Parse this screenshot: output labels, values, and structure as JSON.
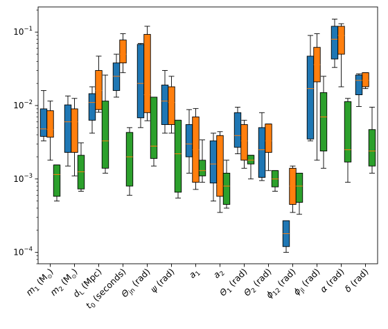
{
  "chart_data": {
    "type": "box",
    "yscale": "log",
    "ylim": [
      7e-05,
      0.22
    ],
    "yticks": [
      {
        "value": 0.0001,
        "base": "10",
        "exp": "−4"
      },
      {
        "value": 0.001,
        "base": "10",
        "exp": "−3"
      },
      {
        "value": 0.01,
        "base": "10",
        "exp": "−2"
      },
      {
        "value": 0.1,
        "base": "10",
        "exp": "−1"
      }
    ],
    "categories": [
      {
        "base": "m",
        "sub": "1",
        "unit": " (M",
        "unit_sub": "⊙",
        "unit_end": ")"
      },
      {
        "base": "m",
        "sub": "2",
        "unit": " (M",
        "unit_sub": "⊙",
        "unit_end": ")"
      },
      {
        "base": "d",
        "sub": "L",
        "unit": " (Mpc)"
      },
      {
        "base": "t",
        "sub": "0",
        "unit": " (seconds)"
      },
      {
        "base": "Θ",
        "sub": "jn",
        "unit": " (rad)"
      },
      {
        "base": "ψ",
        "unit": " (rad)"
      },
      {
        "base": "a",
        "sub": "1"
      },
      {
        "base": "a",
        "sub": "2"
      },
      {
        "base": "Θ",
        "sub": "1",
        "unit": " (rad)"
      },
      {
        "base": "Θ",
        "sub": "2",
        "unit": " (rad)"
      },
      {
        "base": "ϕ",
        "sub": "12",
        "unit": " (rad)"
      },
      {
        "base": "ϕ",
        "sub": "jl",
        "unit": " (rad)"
      },
      {
        "base": "α",
        "unit": " (rad)"
      },
      {
        "base": "δ",
        "unit": " (rad)"
      }
    ],
    "series": [
      {
        "color": "#1f77b4",
        "boxes": [
          {
            "whislo": 0.0033,
            "q1": 0.0038,
            "med": 0.0048,
            "q3": 0.009,
            "whishi": 0.016
          },
          {
            "whislo": 0.0015,
            "q1": 0.0023,
            "med": 0.006,
            "q3": 0.0102,
            "whishi": 0.0135
          },
          {
            "whislo": 0.0042,
            "q1": 0.0063,
            "med": 0.011,
            "q3": 0.0145,
            "whishi": 0.018
          },
          {
            "whislo": 0.013,
            "q1": 0.016,
            "med": 0.025,
            "q3": 0.038,
            "whishi": 0.05
          },
          {
            "whislo": 0.005,
            "q1": 0.0068,
            "med": 0.02,
            "q3": 0.068,
            "whishi": 0.07
          },
          {
            "whislo": 0.0042,
            "q1": 0.0055,
            "med": 0.0115,
            "q3": 0.019,
            "whishi": 0.03
          },
          {
            "whislo": 0.0012,
            "q1": 0.002,
            "med": 0.003,
            "q3": 0.0055,
            "whishi": 0.0088
          },
          {
            "whislo": 0.0005,
            "q1": 0.00088,
            "med": 0.0016,
            "q3": 0.0033,
            "whishi": 0.0042
          },
          {
            "whislo": 0.0022,
            "q1": 0.0027,
            "med": 0.0039,
            "q3": 0.008,
            "whishi": 0.0095
          },
          {
            "whislo": 0.00095,
            "q1": 0.00105,
            "med": 0.0025,
            "q3": 0.005,
            "whishi": 0.008
          },
          {
            "whislo": 0.0001,
            "q1": 0.00012,
            "med": 0.00018,
            "q3": 0.00027,
            "whishi": 0.00027
          },
          {
            "whislo": 0.0033,
            "q1": 0.0035,
            "med": 0.017,
            "q3": 0.047,
            "whishi": 0.09
          },
          {
            "whislo": 0.033,
            "q1": 0.043,
            "med": 0.08,
            "q3": 0.12,
            "whishi": 0.15
          },
          {
            "whislo": 0.0097,
            "q1": 0.014,
            "med": 0.022,
            "q3": 0.026,
            "whishi": 0.027
          }
        ]
      },
      {
        "color": "#ff7f0e",
        "boxes": [
          {
            "whislo": 0.0018,
            "q1": 0.0037,
            "med": 0.0047,
            "q3": 0.0085,
            "whishi": 0.0115
          },
          {
            "whislo": 0.0011,
            "q1": 0.0023,
            "med": 0.006,
            "q3": 0.009,
            "whishi": 0.0125
          },
          {
            "whislo": 0.0081,
            "q1": 0.0088,
            "med": 0.016,
            "q3": 0.03,
            "whishi": 0.047
          },
          {
            "whislo": 0.028,
            "q1": 0.038,
            "med": 0.05,
            "q3": 0.078,
            "whishi": 0.095
          },
          {
            "whislo": 0.0062,
            "q1": 0.008,
            "med": 0.014,
            "q3": 0.093,
            "whishi": 0.12
          },
          {
            "whislo": 0.0042,
            "q1": 0.0055,
            "med": 0.011,
            "q3": 0.018,
            "whishi": 0.025
          },
          {
            "whislo": 0.00072,
            "q1": 0.0009,
            "med": 0.0025,
            "q3": 0.007,
            "whishi": 0.0091
          },
          {
            "whislo": 0.00035,
            "q1": 0.00058,
            "med": 0.00085,
            "q3": 0.0039,
            "whishi": 0.0044
          },
          {
            "whislo": 0.0014,
            "q1": 0.0018,
            "med": 0.0033,
            "q3": 0.0055,
            "whishi": 0.0063
          },
          {
            "whislo": 0.0013,
            "q1": 0.0023,
            "med": 0.0033,
            "q3": 0.0056,
            "whishi": 0.0056
          },
          {
            "whislo": 0.00035,
            "q1": 0.00045,
            "med": 0.0008,
            "q3": 0.0014,
            "whishi": 0.0015
          },
          {
            "whislo": 0.0018,
            "q1": 0.021,
            "med": 0.036,
            "q3": 0.062,
            "whishi": 0.095
          },
          {
            "whislo": 0.018,
            "q1": 0.05,
            "med": 0.09,
            "q3": 0.12,
            "whishi": 0.13
          },
          {
            "whislo": 0.017,
            "q1": 0.018,
            "med": 0.022,
            "q3": 0.028,
            "whishi": 0.028
          }
        ]
      },
      {
        "color": "#2ca02c",
        "boxes": [
          {
            "whislo": 0.0005,
            "q1": 0.00058,
            "med": 0.00115,
            "q3": 0.00155,
            "whishi": 0.00155
          },
          {
            "whislo": 0.00068,
            "q1": 0.00073,
            "med": 0.00125,
            "q3": 0.0021,
            "whishi": 0.0031
          },
          {
            "whislo": 0.0012,
            "q1": 0.0014,
            "med": 0.0033,
            "q3": 0.0115,
            "whishi": 0.026
          },
          {
            "whislo": 0.0006,
            "q1": 0.0008,
            "med": 0.002,
            "q3": 0.0043,
            "whishi": 0.005
          },
          {
            "whislo": 0.0015,
            "q1": 0.0019,
            "med": 0.0028,
            "q3": 0.013,
            "whishi": 0.013
          },
          {
            "whislo": 0.00055,
            "q1": 0.00066,
            "med": 0.0022,
            "q3": 0.0063,
            "whishi": 0.0063
          },
          {
            "whislo": 0.0009,
            "q1": 0.0011,
            "med": 0.0013,
            "q3": 0.0018,
            "whishi": 0.0034
          },
          {
            "whislo": 0.0004,
            "q1": 0.00045,
            "med": 0.0008,
            "q3": 0.0012,
            "whishi": 0.0018
          },
          {
            "whislo": 0.001,
            "q1": 0.0016,
            "med": 0.0018,
            "q3": 0.0021,
            "whishi": 0.0021
          },
          {
            "whislo": 0.00068,
            "q1": 0.00078,
            "med": 0.001,
            "q3": 0.0013,
            "whishi": 0.0013
          },
          {
            "whislo": 0.00033,
            "q1": 0.00048,
            "med": 0.0008,
            "q3": 0.0012,
            "whishi": 0.0012
          },
          {
            "whislo": 0.0014,
            "q1": 0.0024,
            "med": 0.007,
            "q3": 0.015,
            "whishi": 0.025
          },
          {
            "whislo": 0.0009,
            "q1": 0.0017,
            "med": 0.0025,
            "q3": 0.0113,
            "whishi": 0.0125
          },
          {
            "whislo": 0.0012,
            "q1": 0.0015,
            "med": 0.0024,
            "q3": 0.0047,
            "whishi": 0.0095
          }
        ]
      }
    ]
  }
}
